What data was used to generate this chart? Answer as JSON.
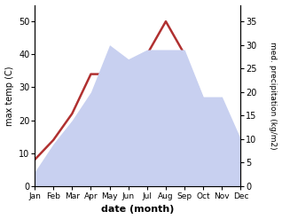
{
  "months": [
    "Jan",
    "Feb",
    "Mar",
    "Apr",
    "May",
    "Jun",
    "Jul",
    "Aug",
    "Sep",
    "Oct",
    "Nov",
    "Dec"
  ],
  "temperature": [
    8,
    14,
    22,
    34,
    34,
    32,
    40,
    50,
    40,
    26,
    20,
    9
  ],
  "precipitation": [
    3,
    9,
    14,
    20,
    30,
    27,
    29,
    29,
    29,
    19,
    19,
    10
  ],
  "temp_color": "#b03030",
  "precip_fill_color": "#c8d0f0",
  "temp_ylim": [
    0,
    55
  ],
  "temp_yticks": [
    0,
    10,
    20,
    30,
    40,
    50
  ],
  "precip_ylim": [
    0,
    38.5
  ],
  "precip_yticks": [
    0,
    5,
    10,
    15,
    20,
    25,
    30,
    35
  ],
  "xlabel": "date (month)",
  "ylabel_left": "max temp (C)",
  "ylabel_right": "med. precipitation (kg/m2)"
}
